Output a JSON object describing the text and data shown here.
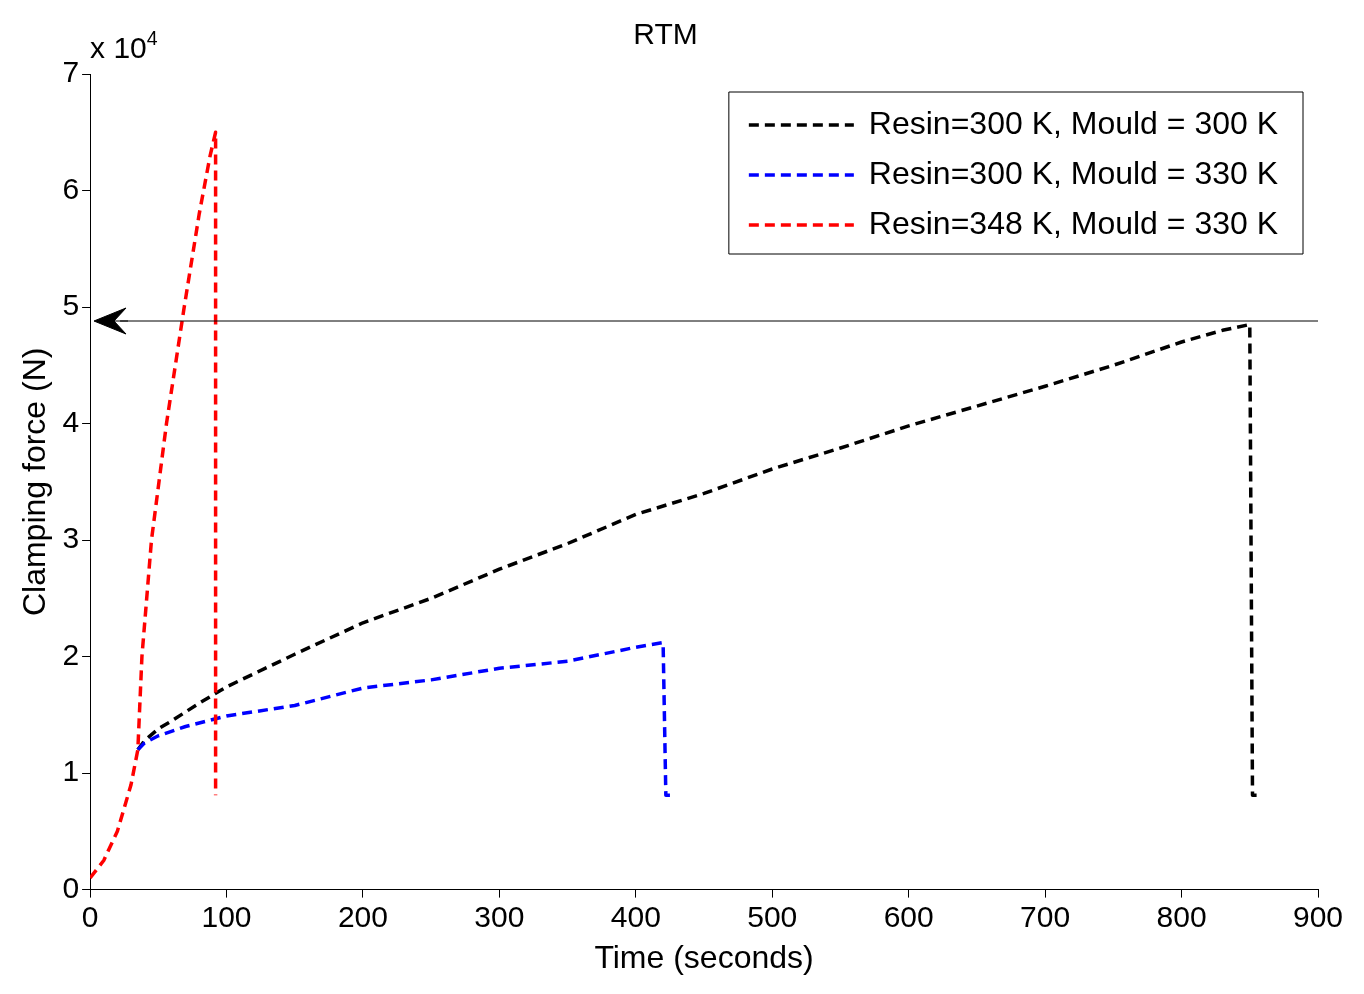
{
  "chart_data": {
    "type": "line",
    "title": "RTM",
    "xlabel": "Time (seconds)",
    "ylabel": "Clamping force (N)",
    "annotations": [
      "x 10$^{4}$"
    ],
    "xlim": [
      0,
      900
    ],
    "xticks": [
      0,
      100,
      200,
      300,
      400,
      500,
      600,
      700,
      800,
      900
    ],
    "ylim": [
      0,
      7
    ],
    "yticks": [
      0,
      1,
      2,
      3,
      4,
      5,
      6,
      7
    ],
    "grid": false,
    "legend": "top right",
    "line_style": "dashed",
    "marker": "none",
    "ref_lines": [
      {
        "axis": "y",
        "value": 4.88,
        "color": "#000000",
        "line_style": "solid"
      }
    ],
    "series": [
      {
        "name": "Resin=300 K, Mould = 300 K",
        "color": "#000000",
        "x": [
          35,
          40,
          50,
          60,
          80,
          100,
          150,
          200,
          250,
          300,
          350,
          400,
          450,
          500,
          550,
          600,
          650,
          700,
          750,
          800,
          830,
          850,
          852,
          855
        ],
        "values": [
          1.2,
          1.28,
          1.38,
          1.45,
          1.6,
          1.74,
          2.02,
          2.29,
          2.5,
          2.75,
          2.97,
          3.22,
          3.4,
          3.61,
          3.79,
          3.98,
          4.15,
          4.32,
          4.5,
          4.7,
          4.8,
          4.85,
          0.81,
          0.81
        ]
      },
      {
        "name": "Resin=300 K, Mould = 330 K",
        "color": "#0000ff",
        "x": [
          35,
          40,
          50,
          70,
          100,
          150,
          200,
          250,
          300,
          350,
          400,
          420,
          422,
          425
        ],
        "values": [
          1.2,
          1.26,
          1.32,
          1.4,
          1.49,
          1.58,
          1.73,
          1.8,
          1.9,
          1.96,
          2.08,
          2.12,
          0.81,
          0.81
        ]
      },
      {
        "name": "Resin=348 K, Mould = 330 K",
        "color": "#ff0000",
        "x": [
          0,
          10,
          20,
          30,
          35,
          38,
          45,
          56,
          69,
          80,
          88,
          92,
          92
        ],
        "values": [
          0.1,
          0.25,
          0.5,
          0.9,
          1.2,
          2.0,
          3.0,
          4.0,
          5.0,
          5.8,
          6.3,
          6.5,
          0.81
        ]
      }
    ]
  }
}
